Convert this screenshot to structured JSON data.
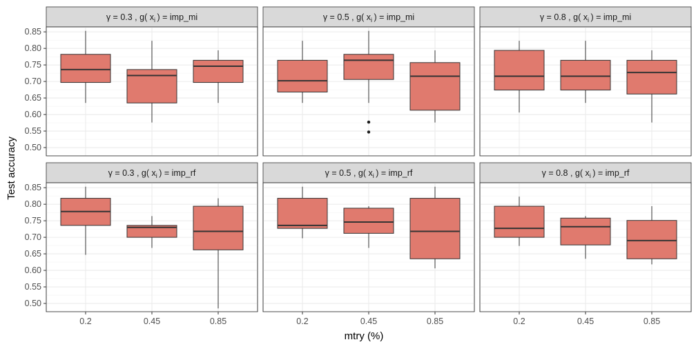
{
  "chart_data": {
    "type": "box",
    "xlabel": "mtry (%)",
    "ylabel": "Test accuracy",
    "categories": [
      "0.2",
      "0.45",
      "0.85"
    ],
    "ylim": [
      0.475,
      0.865
    ],
    "yticks": [
      "0.50",
      "0.55",
      "0.60",
      "0.65",
      "0.70",
      "0.75",
      "0.80",
      "0.85"
    ],
    "grid": true,
    "box_fill": "#E07A6E",
    "box_stroke": "#333333",
    "facets": [
      {
        "strip": {
          "gamma": "γ = 0.3 ,",
          "g": "g(",
          "x": "x",
          "sub": "i",
          "rest": ") = imp_mi"
        },
        "boxes": [
          {
            "category": "0.2",
            "min": 0.635,
            "q1": 0.697,
            "median": 0.736,
            "q3": 0.782,
            "max": 0.853,
            "outliers": []
          },
          {
            "category": "0.45",
            "min": 0.576,
            "q1": 0.635,
            "median": 0.718,
            "q3": 0.736,
            "max": 0.823,
            "outliers": []
          },
          {
            "category": "0.85",
            "min": 0.635,
            "q1": 0.697,
            "median": 0.746,
            "q3": 0.764,
            "max": 0.794,
            "outliers": []
          }
        ]
      },
      {
        "strip": {
          "gamma": "γ = 0.5 ,",
          "g": "g(",
          "x": "x",
          "sub": "i",
          "rest": ") = imp_mi"
        },
        "boxes": [
          {
            "category": "0.2",
            "min": 0.635,
            "q1": 0.668,
            "median": 0.702,
            "q3": 0.764,
            "max": 0.823,
            "outliers": []
          },
          {
            "category": "0.45",
            "min": 0.635,
            "q1": 0.706,
            "median": 0.764,
            "q3": 0.782,
            "max": 0.853,
            "outliers": [
              0.577,
              0.547
            ]
          },
          {
            "category": "0.85",
            "min": 0.576,
            "q1": 0.613,
            "median": 0.716,
            "q3": 0.757,
            "max": 0.794,
            "outliers": []
          }
        ]
      },
      {
        "strip": {
          "gamma": "γ = 0.8 ,",
          "g": "g(",
          "x": "x",
          "sub": "i",
          "rest": ") = imp_mi"
        },
        "boxes": [
          {
            "category": "0.2",
            "min": 0.606,
            "q1": 0.674,
            "median": 0.716,
            "q3": 0.794,
            "max": 0.823,
            "outliers": []
          },
          {
            "category": "0.45",
            "min": 0.635,
            "q1": 0.674,
            "median": 0.716,
            "q3": 0.764,
            "max": 0.823,
            "outliers": []
          },
          {
            "category": "0.85",
            "min": 0.576,
            "q1": 0.662,
            "median": 0.727,
            "q3": 0.764,
            "max": 0.794,
            "outliers": []
          }
        ]
      },
      {
        "strip": {
          "gamma": "γ = 0.3 ,",
          "g": "g(",
          "x": "x",
          "sub": "i",
          "rest": ") = imp_rf"
        },
        "boxes": [
          {
            "category": "0.2",
            "min": 0.647,
            "q1": 0.736,
            "median": 0.778,
            "q3": 0.818,
            "max": 0.853,
            "outliers": []
          },
          {
            "category": "0.45",
            "min": 0.668,
            "q1": 0.7,
            "median": 0.73,
            "q3": 0.736,
            "max": 0.764,
            "outliers": []
          },
          {
            "category": "0.85",
            "min": 0.485,
            "q1": 0.662,
            "median": 0.718,
            "q3": 0.794,
            "max": 0.818,
            "outliers": []
          }
        ]
      },
      {
        "strip": {
          "gamma": "γ = 0.5 ,",
          "g": "g(",
          "x": "x",
          "sub": "i",
          "rest": ") = imp_rf"
        },
        "boxes": [
          {
            "category": "0.2",
            "min": 0.697,
            "q1": 0.727,
            "median": 0.736,
            "q3": 0.818,
            "max": 0.853,
            "outliers": []
          },
          {
            "category": "0.45",
            "min": 0.668,
            "q1": 0.712,
            "median": 0.746,
            "q3": 0.788,
            "max": 0.794,
            "outliers": []
          },
          {
            "category": "0.85",
            "min": 0.606,
            "q1": 0.635,
            "median": 0.718,
            "q3": 0.818,
            "max": 0.853,
            "outliers": []
          }
        ]
      },
      {
        "strip": {
          "gamma": "γ = 0.8 ,",
          "g": "g(",
          "x": "x",
          "sub": "i",
          "rest": ") = imp_rf"
        },
        "boxes": [
          {
            "category": "0.2",
            "min": 0.674,
            "q1": 0.7,
            "median": 0.727,
            "q3": 0.794,
            "max": 0.823,
            "outliers": []
          },
          {
            "category": "0.45",
            "min": 0.635,
            "q1": 0.677,
            "median": 0.732,
            "q3": 0.758,
            "max": 0.764,
            "outliers": []
          },
          {
            "category": "0.85",
            "min": 0.618,
            "q1": 0.635,
            "median": 0.69,
            "q3": 0.751,
            "max": 0.794,
            "outliers": []
          }
        ]
      }
    ]
  }
}
